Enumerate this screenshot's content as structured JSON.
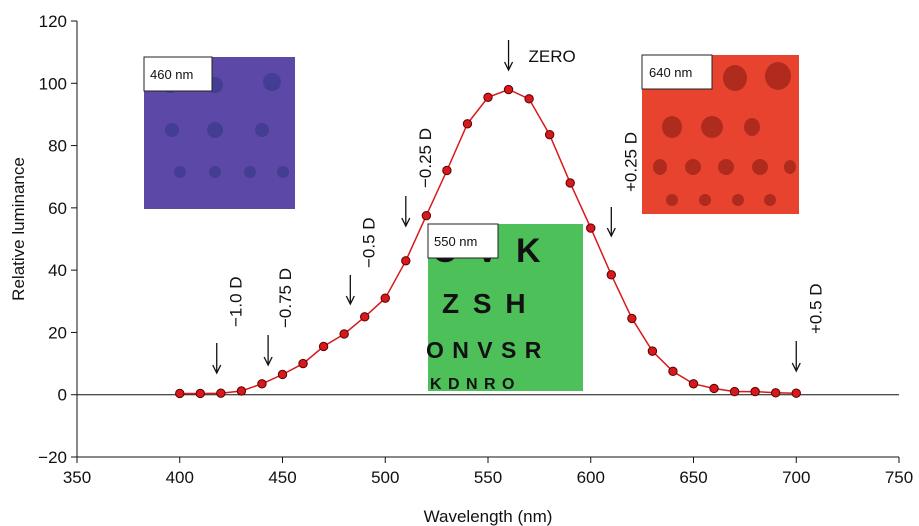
{
  "chart_data": {
    "type": "scatter",
    "xlabel": "Wavelength (nm)",
    "ylabel": "Relative luminance",
    "xlim": [
      350,
      750
    ],
    "ylim": [
      -20,
      120
    ],
    "xticks": [
      "350",
      "400",
      "450",
      "500",
      "550",
      "600",
      "650",
      "700",
      "750"
    ],
    "yticks": [
      "−20",
      "0",
      "20",
      "40",
      "60",
      "80",
      "100",
      "120"
    ],
    "series": [
      {
        "marker_color": "#d7191c",
        "line_color": "#d7191c",
        "x": [
          400,
          410,
          420,
          430,
          440,
          450,
          460,
          470,
          480,
          490,
          500,
          510,
          520,
          530,
          540,
          550,
          560,
          570,
          580,
          590,
          600,
          610,
          620,
          630,
          640,
          650,
          660,
          670,
          680,
          690,
          700
        ],
        "y": [
          0.4,
          0.4,
          0.5,
          1.2,
          3.5,
          6.5,
          10,
          15.5,
          19.5,
          25,
          31,
          43,
          57.5,
          72,
          87,
          95.5,
          98,
          95,
          83.5,
          68,
          53.5,
          38.5,
          24.5,
          14,
          7.5,
          3.5,
          2,
          1,
          1,
          0.6,
          0.5
        ]
      }
    ],
    "annotations": [
      {
        "text": "ZERO",
        "x": 560,
        "rotated": false
      },
      {
        "text": "−0.25 D",
        "x": 510,
        "rotated": true
      },
      {
        "text": "+0.25 D",
        "x": 610,
        "rotated": true
      },
      {
        "text": "−0.5 D",
        "x": 483,
        "rotated": true
      },
      {
        "text": "−0.75 D",
        "x": 443,
        "rotated": true
      },
      {
        "text": "−1.0 D",
        "x": 418,
        "rotated": true
      },
      {
        "text": "+0.5 D",
        "x": 700,
        "rotated": true
      }
    ],
    "insets": [
      {
        "label": "460 nm",
        "color": "#5c48a6"
      },
      {
        "label": "550 nm",
        "color": "#4ec05a"
      },
      {
        "label": "640 nm",
        "color": "#e8432f"
      }
    ],
    "inset_550_letters": [
      "O V K",
      "Z S H",
      "O N V S R",
      "K D N R O"
    ],
    "grid": false
  }
}
